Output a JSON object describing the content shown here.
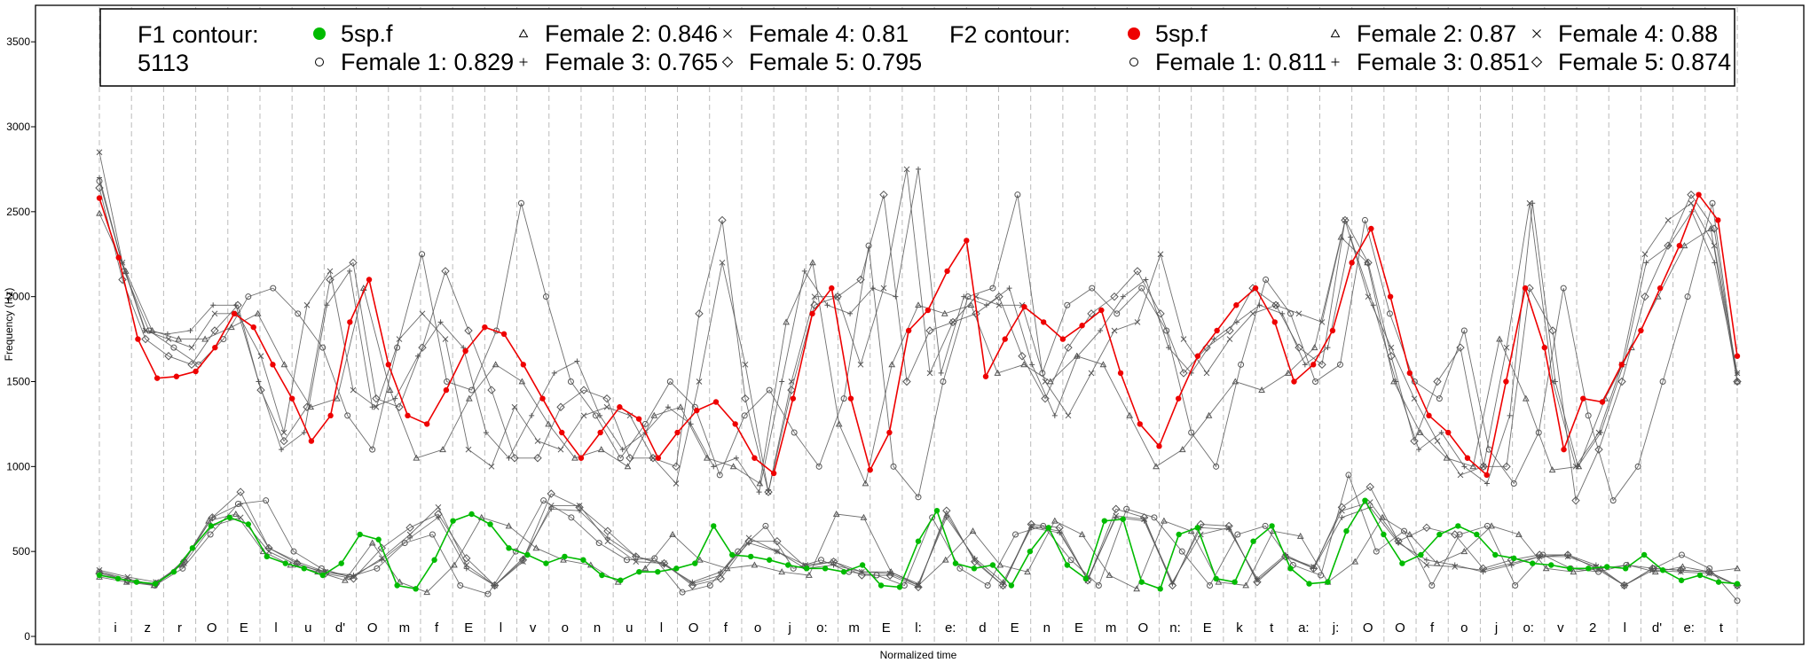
{
  "legend": {
    "f1_title_line1": "F1 contour:",
    "f1_title_line2": "5113",
    "f2_title": "F2 contour:",
    "f1_entries": [
      {
        "marker": "dot-green",
        "label": "5sp.f"
      },
      {
        "marker": "circle",
        "label": "Female 1: 0.829"
      },
      {
        "marker": "triangle",
        "label": "Female 2: 0.846"
      },
      {
        "marker": "plus",
        "label": "Female 3: 0.765"
      },
      {
        "marker": "cross",
        "label": "Female 4: 0.81"
      },
      {
        "marker": "diamond",
        "label": "Female 5: 0.795"
      }
    ],
    "f2_entries": [
      {
        "marker": "dot-red",
        "label": "5sp.f"
      },
      {
        "marker": "circle",
        "label": "Female 1: 0.811"
      },
      {
        "marker": "triangle",
        "label": "Female 2: 0.87"
      },
      {
        "marker": "plus",
        "label": "Female 3: 0.851"
      },
      {
        "marker": "cross",
        "label": "Female 4: 0.88"
      },
      {
        "marker": "diamond",
        "label": "Female 5: 0.874"
      }
    ]
  },
  "colors": {
    "f1_mean": "#00bb00",
    "f2_mean": "#ee0000",
    "speakers": "#555555",
    "segment_line": "#bbbbbb"
  },
  "chart_data": {
    "type": "line",
    "xlabel": "Normalized time",
    "ylabel": "Frequency (Hz)",
    "ylim": [
      0,
      3600
    ],
    "yticks": [
      0,
      500,
      1000,
      1500,
      2000,
      2500,
      3000,
      3500
    ],
    "segments": [
      "i",
      "z",
      "r",
      "O",
      "E",
      "l",
      "u",
      "d'",
      "O",
      "m",
      "f",
      "E",
      "l",
      "v",
      "o",
      "n",
      "u",
      "l",
      "O",
      "f",
      "o",
      "j",
      "o:",
      "m",
      "E",
      "l:",
      "e:",
      "d",
      "E",
      "n",
      "E",
      "m",
      "O",
      "n:",
      "E",
      "k",
      "t",
      "a:",
      "j:",
      "O",
      "O",
      "f",
      "o",
      "j",
      "o:",
      "v",
      "2",
      "l",
      "d'",
      "e:",
      "t"
    ],
    "series": [
      {
        "name": "5sp.f",
        "formant": "F2",
        "color": "#ee0000",
        "values": [
          2580,
          2230,
          1750,
          1520,
          1530,
          1560,
          1700,
          1900,
          1820,
          1600,
          1400,
          1150,
          1300,
          1850,
          2100,
          1600,
          1300,
          1250,
          1450,
          1680,
          1820,
          1780,
          1600,
          1400,
          1200,
          1050,
          1200,
          1350,
          1280,
          1050,
          1200,
          1330,
          1380,
          1250,
          1050,
          960,
          1400,
          1900,
          2050,
          1400,
          980,
          1200,
          1800,
          1920,
          2150,
          2330,
          1530,
          1750,
          1940,
          1850,
          1750,
          1830,
          1920,
          1550,
          1250,
          1120,
          1400,
          1650,
          1800,
          1950,
          2050,
          1850,
          1500,
          1600,
          1800,
          2200,
          2400,
          2000,
          1550,
          1300,
          1200,
          1050,
          950,
          1500,
          2050,
          1700,
          1100,
          1400,
          1380,
          1600,
          1800,
          2050,
          2300,
          2600,
          2450,
          1650
        ]
      },
      {
        "name": "5sp.f",
        "formant": "F1",
        "color": "#00bb00",
        "values": [
          360,
          340,
          320,
          310,
          380,
          520,
          650,
          700,
          660,
          470,
          430,
          400,
          360,
          430,
          600,
          570,
          300,
          280,
          450,
          680,
          720,
          660,
          520,
          480,
          430,
          470,
          450,
          360,
          330,
          380,
          380,
          400,
          430,
          650,
          480,
          470,
          450,
          420,
          400,
          400,
          380,
          420,
          300,
          290,
          560,
          740,
          430,
          400,
          420,
          300,
          500,
          640,
          420,
          340,
          680,
          690,
          320,
          280,
          600,
          640,
          340,
          320,
          560,
          650,
          400,
          310,
          320,
          620,
          800,
          600,
          430,
          480,
          600,
          650,
          600,
          480,
          460,
          430,
          420,
          400,
          400,
          410,
          400,
          480,
          390,
          330,
          360,
          320,
          310
        ]
      },
      {
        "name": "Female 1",
        "formant": "F2",
        "color": "#555555",
        "values": [
          2680,
          2150,
          1800,
          1700,
          1600,
          1750,
          2000,
          2050,
          1900,
          1700,
          1300,
          1100,
          1700,
          2250,
          1500,
          1450,
          1800,
          2550,
          2000,
          1500,
          1300,
          1050,
          1250,
          1500,
          1350,
          950,
          1300,
          1450,
          1200,
          1000,
          1400,
          2300,
          1000,
          820,
          1500,
          2000,
          2050,
          2600,
          1550,
          1950,
          2050,
          1900,
          2050,
          1800,
          1200,
          1000,
          1600,
          2100,
          1900,
          1500,
          1600,
          2450,
          1900,
          1500,
          1400,
          1800,
          1100,
          900,
          1200,
          2050,
          1300,
          800,
          1000,
          1500,
          2000,
          2550,
          1500
        ]
      },
      {
        "name": "Female 1",
        "formant": "F1",
        "color": "#555555",
        "values": [
          380,
          330,
          300,
          400,
          600,
          780,
          800,
          500,
          400,
          350,
          400,
          550,
          600,
          300,
          250,
          500,
          800,
          700,
          550,
          450,
          460,
          260,
          300,
          500,
          650,
          400,
          450,
          380,
          360,
          300,
          700,
          400,
          300,
          600,
          650,
          450,
          300,
          750,
          700,
          500,
          300,
          600,
          650,
          420,
          360,
          950,
          500,
          620,
          300,
          600,
          650,
          300,
          480,
          400,
          380,
          420,
          400,
          480,
          400,
          210
        ]
      },
      {
        "name": "Female 2",
        "formant": "F2",
        "color": "#555555",
        "values": [
          2490,
          2150,
          1800,
          1750,
          1750,
          1820,
          1900,
          1600,
          1350,
          1400,
          2050,
          1450,
          1050,
          1100,
          1400,
          1600,
          1500,
          1250,
          1050,
          1100,
          1000,
          1300,
          1350,
          1050,
          1000,
          900,
          1850,
          2200,
          1250,
          900,
          1600,
          1950,
          1900,
          1950,
          1550,
          1600,
          1500,
          1650,
          1600,
          1300,
          1000,
          1100,
          1300,
          1500,
          1450,
          1550,
          1700,
          2350,
          2200,
          1500,
          1200,
          1050,
          1000,
          1750,
          1400,
          980,
          1000,
          1400,
          1700,
          2000,
          2300,
          2400,
          1500
        ]
      },
      {
        "name": "Female 2",
        "formant": "F1",
        "color": "#555555",
        "values": [
          350,
          320,
          300,
          420,
          680,
          720,
          500,
          420,
          380,
          330,
          550,
          320,
          260,
          420,
          700,
          650,
          520,
          450,
          420,
          320,
          400,
          600,
          450,
          400,
          420,
          380,
          360,
          720,
          700,
          380,
          300,
          450,
          620,
          420,
          380,
          680,
          600,
          360,
          280,
          680,
          620,
          320,
          300,
          620,
          590,
          320,
          440,
          700,
          600,
          430,
          500,
          650,
          600,
          400,
          380,
          400,
          420,
          380,
          410,
          380,
          400
        ]
      },
      {
        "name": "Female 3",
        "formant": "F2",
        "color": "#555555",
        "values": [
          2700,
          2200,
          1800,
          1780,
          1800,
          1950,
          1950,
          1500,
          1100,
          1200,
          1950,
          2150,
          1350,
          1400,
          1650,
          1850,
          1700,
          1200,
          1050,
          1300,
          1550,
          1620,
          1300,
          1100,
          1200,
          1350,
          1250,
          1000,
          1050,
          850,
          1500,
          2150,
          1950,
          1900,
          2050,
          2000,
          2750,
          1550,
          2000,
          1950,
          2050,
          1600,
          1300,
          1650,
          1800,
          2000,
          2100,
          1700,
          1550,
          1750,
          1850,
          1950,
          1900,
          1600,
          1700,
          2350,
          1950,
          1500,
          1100,
          1200,
          1000,
          900,
          1300,
          2550,
          1500,
          1000,
          1200,
          1600,
          2200,
          2300,
          2500,
          2200,
          1550
        ]
      },
      {
        "name": "Female 3",
        "formant": "F1",
        "color": "#555555",
        "values": [
          380,
          340,
          300,
          450,
          700,
          780,
          520,
          440,
          380,
          360,
          450,
          580,
          700,
          400,
          300,
          460,
          750,
          740,
          580,
          470,
          420,
          320,
          380,
          550,
          500,
          400,
          420,
          380,
          380,
          310,
          700,
          460,
          320,
          640,
          610,
          340,
          700,
          680,
          310,
          640,
          630,
          340,
          480,
          400,
          700,
          760,
          550,
          450,
          420,
          380,
          420,
          470,
          480,
          420,
          300,
          400,
          390,
          380,
          300
        ]
      },
      {
        "name": "Female 4",
        "formant": "F2",
        "color": "#555555",
        "values": [
          2850,
          2200,
          1800,
          1750,
          1700,
          1900,
          1900,
          1650,
          1200,
          1950,
          2150,
          1450,
          1350,
          1750,
          1900,
          1750,
          1100,
          1000,
          1350,
          1150,
          1100,
          1300,
          1350,
          1300,
          1050,
          900,
          1500,
          2200,
          1600,
          850,
          1500,
          2000,
          2000,
          1600,
          2050,
          2750,
          1550,
          1850,
          2000,
          1950,
          1950,
          1500,
          1300,
          1550,
          1800,
          1850,
          2250,
          1750,
          1550,
          1750,
          1900,
          1950,
          1900,
          1850,
          2450,
          2000,
          1700,
          1400,
          1150,
          950,
          1000,
          1700,
          2550,
          1500,
          1000,
          1200,
          1600,
          2250,
          2450,
          2550,
          2300,
          1550
        ]
      },
      {
        "name": "Female 4",
        "formant": "F1",
        "color": "#555555",
        "values": [
          390,
          350,
          320,
          430,
          650,
          700,
          500,
          420,
          380,
          350,
          460,
          600,
          760,
          420,
          300,
          440,
          770,
          770,
          560,
          440,
          430,
          310,
          360,
          580,
          500,
          420,
          440,
          380,
          370,
          300,
          720,
          450,
          300,
          650,
          620,
          330,
          710,
          690,
          320,
          600,
          640,
          330,
          470,
          410,
          740,
          790,
          560,
          420,
          410,
          390,
          430,
          470,
          470,
          410,
          300,
          390,
          380,
          370,
          300
        ]
      },
      {
        "name": "Female 5",
        "formant": "F2",
        "color": "#555555",
        "values": [
          2640,
          2100,
          1750,
          1650,
          1600,
          1800,
          1950,
          1450,
          1150,
          1350,
          2100,
          2200,
          1400,
          1350,
          1700,
          2150,
          1800,
          1450,
          1050,
          1050,
          1350,
          1450,
          1400,
          1050,
          1050,
          1000,
          1900,
          2450,
          1400,
          850,
          1450,
          1950,
          2000,
          2100,
          2600,
          1500,
          1800,
          1850,
          1900,
          2000,
          1650,
          1400,
          1700,
          1900,
          2000,
          2150,
          1900,
          1550,
          1700,
          1800,
          2050,
          1950,
          1700,
          1600,
          2450,
          2200,
          1650,
          1150,
          1500,
          1700,
          1000,
          1000,
          2050,
          1800,
          800,
          1100,
          1500,
          2000,
          2300,
          2600,
          2400,
          1500
        ]
      },
      {
        "name": "Female 5",
        "formant": "F1",
        "color": "#555555",
        "values": [
          370,
          330,
          310,
          440,
          700,
          850,
          520,
          430,
          370,
          340,
          520,
          640,
          720,
          460,
          300,
          450,
          840,
          760,
          620,
          470,
          430,
          300,
          340,
          560,
          560,
          410,
          440,
          360,
          360,
          290,
          740,
          440,
          300,
          660,
          640,
          330,
          750,
          700,
          300,
          660,
          650,
          320,
          470,
          400,
          760,
          880,
          560,
          640,
          600,
          400,
          450,
          480,
          480,
          400,
          300,
          400,
          390,
          380,
          300
        ]
      }
    ]
  }
}
